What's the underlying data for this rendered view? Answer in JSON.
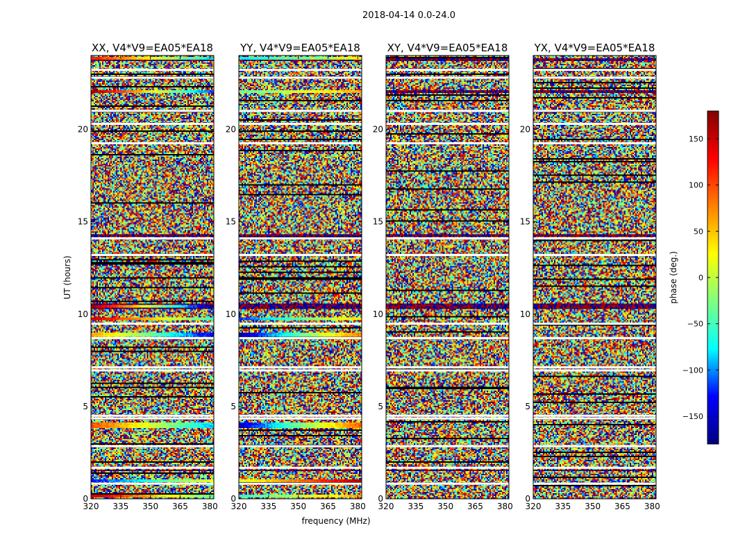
{
  "chart_data": {
    "type": "heatmap",
    "suptitle": "2018-04-14 0.0-24.0",
    "panels": [
      {
        "title": "XX, V4*V9=EA05*EA18",
        "polarization": "XX"
      },
      {
        "title": "YY, V4*V9=EA05*EA18",
        "polarization": "YY"
      },
      {
        "title": "XY, V4*V9=EA05*EA18",
        "polarization": "XY"
      },
      {
        "title": "YX, V4*V9=EA05*EA18",
        "polarization": "YX"
      }
    ],
    "xlabel": "frequency (MHz)",
    "ylabel": "UT (hours)",
    "xlim": [
      320,
      382
    ],
    "ylim": [
      0,
      24
    ],
    "xticks": [
      320,
      335,
      350,
      365,
      380
    ],
    "xtick_labels": [
      "320",
      "335",
      "350",
      "365",
      "380"
    ],
    "yticks": [
      0,
      5,
      10,
      15,
      20
    ],
    "ytick_labels": [
      "0",
      "5",
      "10",
      "15",
      "20"
    ],
    "colorbar": {
      "label": "phase (deg.)",
      "vmin": -180,
      "vmax": 180,
      "ticks": [
        150,
        100,
        50,
        0,
        -50,
        -100,
        -150
      ],
      "tick_labels": [
        "150",
        "100",
        "50",
        "0",
        "−50",
        "−100",
        "−150"
      ],
      "colormap": "jet",
      "colormap_stops": [
        "#000080",
        "#0000ff",
        "#00ffff",
        "#80ff80",
        "#ffff00",
        "#ff8000",
        "#ff0000",
        "#800000"
      ]
    },
    "white_gaps_hours": [
      0.82,
      1.68,
      2.85,
      4.35,
      4.5,
      6.95,
      7.12,
      8.7,
      9.48,
      13.2,
      14.1,
      19.25,
      20.3,
      21.0,
      22.8,
      23.22
    ],
    "dark_bands_hours": [
      [
        0.05,
        0.1
      ],
      [
        1.5,
        1.6
      ],
      [
        10.25,
        10.55
      ],
      [
        14.2,
        14.3
      ],
      [
        21.95,
        22.1
      ],
      [
        23.7,
        23.85
      ]
    ],
    "coherent_bands": {
      "XX": [
        {
          "t0": 0.05,
          "t1": 0.2,
          "phase_start": 150,
          "phase_end": -40
        },
        {
          "t0": 0.88,
          "t1": 1.05,
          "phase_start": -130,
          "phase_end": 20
        },
        {
          "t0": 3.85,
          "t1": 4.1,
          "phase_start": 100,
          "phase_end": -90
        },
        {
          "t0": 8.8,
          "t1": 9.0,
          "phase_start": 60,
          "phase_end": -140
        },
        {
          "t0": 9.7,
          "t1": 9.85,
          "phase_start": 150,
          "phase_end": -60
        },
        {
          "t0": 10.35,
          "t1": 10.5,
          "phase_start": 170,
          "phase_end": -170
        },
        {
          "t0": 21.95,
          "t1": 22.15,
          "phase_start": 170,
          "phase_end": -120
        },
        {
          "t0": 23.75,
          "t1": 23.95,
          "phase_start": 120,
          "phase_end": -80
        }
      ],
      "YY": [
        {
          "t0": 0.05,
          "t1": 0.2,
          "phase_start": -60,
          "phase_end": 60
        },
        {
          "t0": 0.88,
          "t1": 1.05,
          "phase_start": 10,
          "phase_end": 160
        },
        {
          "t0": 3.85,
          "t1": 4.1,
          "phase_start": -150,
          "phase_end": 90
        },
        {
          "t0": 8.8,
          "t1": 9.0,
          "phase_start": -160,
          "phase_end": 80
        },
        {
          "t0": 9.7,
          "t1": 9.85,
          "phase_start": -120,
          "phase_end": 40
        },
        {
          "t0": 21.95,
          "t1": 22.15,
          "phase_start": -40,
          "phase_end": 60
        },
        {
          "t0": 23.75,
          "t1": 23.95,
          "phase_start": -80,
          "phase_end": 20
        }
      ],
      "XY": [],
      "YX": []
    }
  }
}
